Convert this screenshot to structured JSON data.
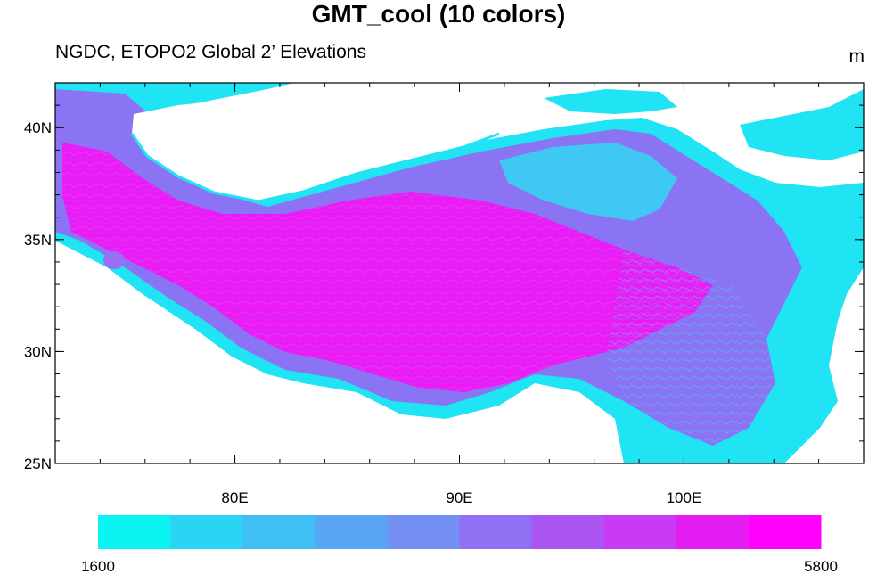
{
  "title": "GMT_cool (10 colors)",
  "left_string": "NGDC, ETOPO2 Global 2’ Elevations",
  "right_string": "m",
  "map": {
    "lat_ticks": [
      {
        "value": 25,
        "label": "25N"
      },
      {
        "value": 30,
        "label": "30N"
      },
      {
        "value": 35,
        "label": "35N"
      },
      {
        "value": 40,
        "label": "40N"
      }
    ],
    "lon_ticks": [
      {
        "value": 80,
        "label": "80E"
      },
      {
        "value": 90,
        "label": "90E"
      },
      {
        "value": 100,
        "label": "100E"
      }
    ],
    "lon_range": [
      72,
      108
    ],
    "lat_range": [
      25,
      42
    ]
  },
  "colorbar": {
    "min_label": "1600",
    "max_label": "5800",
    "colors": [
      "#0cf3f3",
      "#2ad5f3",
      "#3fbff3",
      "#58a5f3",
      "#7590f3",
      "#9070f3",
      "#ab55f3",
      "#c83af3",
      "#e41df3",
      "#ff00ff"
    ]
  }
}
